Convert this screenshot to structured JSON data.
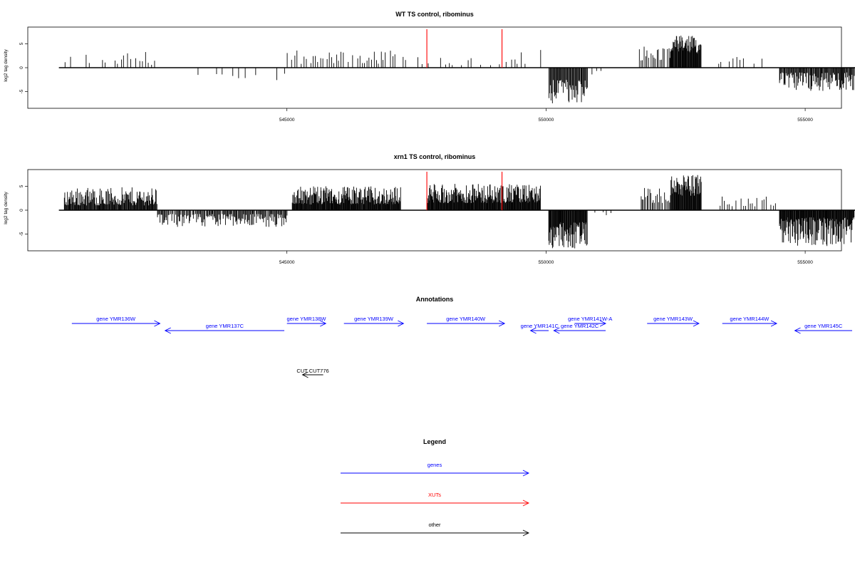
{
  "chart_data": [
    {
      "type": "bar",
      "title": "WT TS control, ribominus",
      "ylabel": "log2 tag density",
      "ylim": [
        -8.5,
        8.5
      ],
      "yticks": [
        -5,
        0,
        5
      ],
      "xlim": [
        540000,
        555700
      ],
      "xticks": [
        545000,
        550000,
        555000
      ],
      "baseline_range": [
        540600,
        556000
      ],
      "xut_marker_positions": [
        547700,
        549150
      ],
      "series": [
        {
          "segments": [
            {
              "start": 540700,
              "end": 542500,
              "strand": "+",
              "min": 0.6,
              "max": 3.5,
              "spacing": 60,
              "fill": 0.7
            },
            {
              "start": 542600,
              "end": 545000,
              "strand": "-",
              "min": 0.5,
              "max": 2.8,
              "spacing": 110,
              "fill": 0.45
            },
            {
              "start": 545000,
              "end": 547100,
              "strand": "+",
              "min": 0.8,
              "max": 3.6,
              "spacing": 45,
              "fill": 0.8
            },
            {
              "start": 547100,
              "end": 549500,
              "strand": "+",
              "min": 0.5,
              "max": 2.5,
              "spacing": 60,
              "fill": 0.55
            },
            {
              "start": 549500,
              "end": 549900,
              "strand": "+",
              "min": 0.8,
              "max": 3.8,
              "spacing": 90,
              "fill": 0.6
            },
            {
              "start": 550050,
              "end": 550800,
              "strand": "-",
              "min": 2.5,
              "max": 7.5,
              "spacing": 14,
              "fill": 1.0
            },
            {
              "start": 550800,
              "end": 551300,
              "strand": "-",
              "min": 0.4,
              "max": 1.5,
              "spacing": 80,
              "fill": 0.5
            },
            {
              "start": 551800,
              "end": 552400,
              "strand": "+",
              "min": 1.5,
              "max": 4.5,
              "spacing": 28,
              "fill": 0.9
            },
            {
              "start": 552400,
              "end": 553000,
              "strand": "+",
              "min": 3.0,
              "max": 6.8,
              "spacing": 10,
              "fill": 1.0
            },
            {
              "start": 553300,
              "end": 554200,
              "strand": "+",
              "min": 0.8,
              "max": 3.2,
              "spacing": 70,
              "fill": 0.6
            },
            {
              "start": 554500,
              "end": 555950,
              "strand": "-",
              "min": 1.0,
              "max": 5.0,
              "spacing": 14,
              "fill": 1.0
            }
          ]
        }
      ]
    },
    {
      "type": "bar",
      "title": "xrn1 TS control, ribominus",
      "ylabel": "log2 tag density",
      "ylim": [
        -8.5,
        8.5
      ],
      "yticks": [
        -5,
        0,
        5
      ],
      "xlim": [
        540000,
        555700
      ],
      "xticks": [
        545000,
        550000,
        555000
      ],
      "baseline_range": [
        540600,
        556000
      ],
      "xut_marker_positions": [
        547700,
        549150
      ],
      "series": [
        {
          "segments": [
            {
              "start": 540700,
              "end": 542500,
              "strand": "+",
              "min": 1.0,
              "max": 4.8,
              "spacing": 12,
              "fill": 1.0
            },
            {
              "start": 542500,
              "end": 545000,
              "strand": "-",
              "min": 0.8,
              "max": 3.5,
              "spacing": 16,
              "fill": 0.95
            },
            {
              "start": 545100,
              "end": 547200,
              "strand": "+",
              "min": 1.2,
              "max": 5.0,
              "spacing": 10,
              "fill": 1.0
            },
            {
              "start": 547700,
              "end": 549900,
              "strand": "+",
              "min": 1.5,
              "max": 5.5,
              "spacing": 10,
              "fill": 1.0
            },
            {
              "start": 550050,
              "end": 550800,
              "strand": "-",
              "min": 2.5,
              "max": 8.0,
              "spacing": 10,
              "fill": 1.0
            },
            {
              "start": 550800,
              "end": 551300,
              "strand": "-",
              "min": 0.4,
              "max": 1.5,
              "spacing": 70,
              "fill": 0.5
            },
            {
              "start": 551800,
              "end": 552400,
              "strand": "+",
              "min": 1.5,
              "max": 5.0,
              "spacing": 24,
              "fill": 0.9
            },
            {
              "start": 552400,
              "end": 553000,
              "strand": "+",
              "min": 3.0,
              "max": 7.5,
              "spacing": 10,
              "fill": 1.0
            },
            {
              "start": 553300,
              "end": 554500,
              "strand": "+",
              "min": 0.8,
              "max": 3.0,
              "spacing": 45,
              "fill": 0.7
            },
            {
              "start": 554500,
              "end": 555950,
              "strand": "-",
              "min": 1.5,
              "max": 7.5,
              "spacing": 10,
              "fill": 1.0
            }
          ]
        }
      ]
    }
  ],
  "annotations": {
    "title": "Annotations",
    "genes": [
      {
        "label": "gene YMR136W",
        "start": 540850,
        "end": 542550,
        "strand": "+",
        "row": 0
      },
      {
        "label": "gene YMR137C",
        "start": 542650,
        "end": 544950,
        "strand": "-",
        "row": 1
      },
      {
        "label": "gene YMR138W",
        "start": 545000,
        "end": 545750,
        "strand": "+",
        "row": 0
      },
      {
        "label": "gene YMR139W",
        "start": 546100,
        "end": 547250,
        "strand": "+",
        "row": 0
      },
      {
        "label": "gene YMR140W",
        "start": 547700,
        "end": 549200,
        "strand": "+",
        "row": 0
      },
      {
        "label": "gene YMR141C",
        "start": 549700,
        "end": 550050,
        "strand": "-",
        "row": 1
      },
      {
        "label": "gene YMR141W-A",
        "start": 550550,
        "end": 551150,
        "strand": "+",
        "row": 0
      },
      {
        "label": "gene YMR142C",
        "start": 550150,
        "end": 551150,
        "strand": "-",
        "row": 1
      },
      {
        "label": "gene YMR143W",
        "start": 551950,
        "end": 552950,
        "strand": "+",
        "row": 0
      },
      {
        "label": "gene YMR144W",
        "start": 553400,
        "end": 554450,
        "strand": "+",
        "row": 0
      },
      {
        "label": "gene YMR145C",
        "start": 554800,
        "end": 556500,
        "strand": "-",
        "row": 1
      }
    ],
    "other": [
      {
        "label": "CUT CUT776",
        "start": 545300,
        "end": 545700,
        "strand": "-"
      }
    ]
  },
  "legend": {
    "title": "Legend",
    "items": [
      {
        "label": "genes",
        "color": "#0000ff"
      },
      {
        "label": "XUTs",
        "color": "#ff0000"
      },
      {
        "label": "other",
        "color": "#000000"
      }
    ]
  },
  "colors": {
    "bars": "#000000",
    "xut_marker": "#ff0000",
    "genes": "#0000ff",
    "other": "#000000"
  }
}
